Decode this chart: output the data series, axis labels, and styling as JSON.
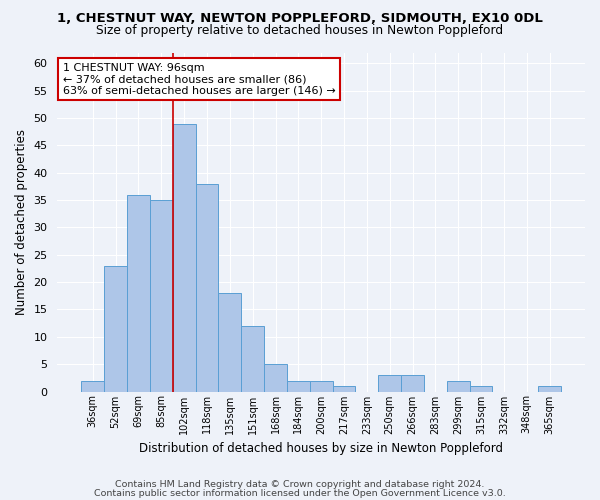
{
  "title1": "1, CHESTNUT WAY, NEWTON POPPLEFORD, SIDMOUTH, EX10 0DL",
  "title2": "Size of property relative to detached houses in Newton Poppleford",
  "xlabel": "Distribution of detached houses by size in Newton Poppleford",
  "ylabel": "Number of detached properties",
  "bin_labels": [
    "36sqm",
    "52sqm",
    "69sqm",
    "85sqm",
    "102sqm",
    "118sqm",
    "135sqm",
    "151sqm",
    "168sqm",
    "184sqm",
    "200sqm",
    "217sqm",
    "233sqm",
    "250sqm",
    "266sqm",
    "283sqm",
    "299sqm",
    "315sqm",
    "332sqm",
    "348sqm",
    "365sqm"
  ],
  "bar_heights": [
    2,
    23,
    36,
    35,
    49,
    38,
    18,
    12,
    5,
    2,
    2,
    1,
    0,
    3,
    3,
    0,
    2,
    1,
    0,
    0,
    1
  ],
  "bar_color": "#aec6e8",
  "bar_edge_color": "#5a9fd4",
  "red_line_x": 3.5,
  "annotation_title": "1 CHESTNUT WAY: 96sqm",
  "annotation_line1": "← 37% of detached houses are smaller (86)",
  "annotation_line2": "63% of semi-detached houses are larger (146) →",
  "annotation_box_color": "#ffffff",
  "annotation_box_edge_color": "#cc0000",
  "vline_color": "#cc0000",
  "ylim": [
    0,
    62
  ],
  "yticks": [
    0,
    5,
    10,
    15,
    20,
    25,
    30,
    35,
    40,
    45,
    50,
    55,
    60
  ],
  "footer1": "Contains HM Land Registry data © Crown copyright and database right 2024.",
  "footer2": "Contains public sector information licensed under the Open Government Licence v3.0.",
  "bg_color": "#eef2f9",
  "plot_bg_color": "#eef2f9"
}
